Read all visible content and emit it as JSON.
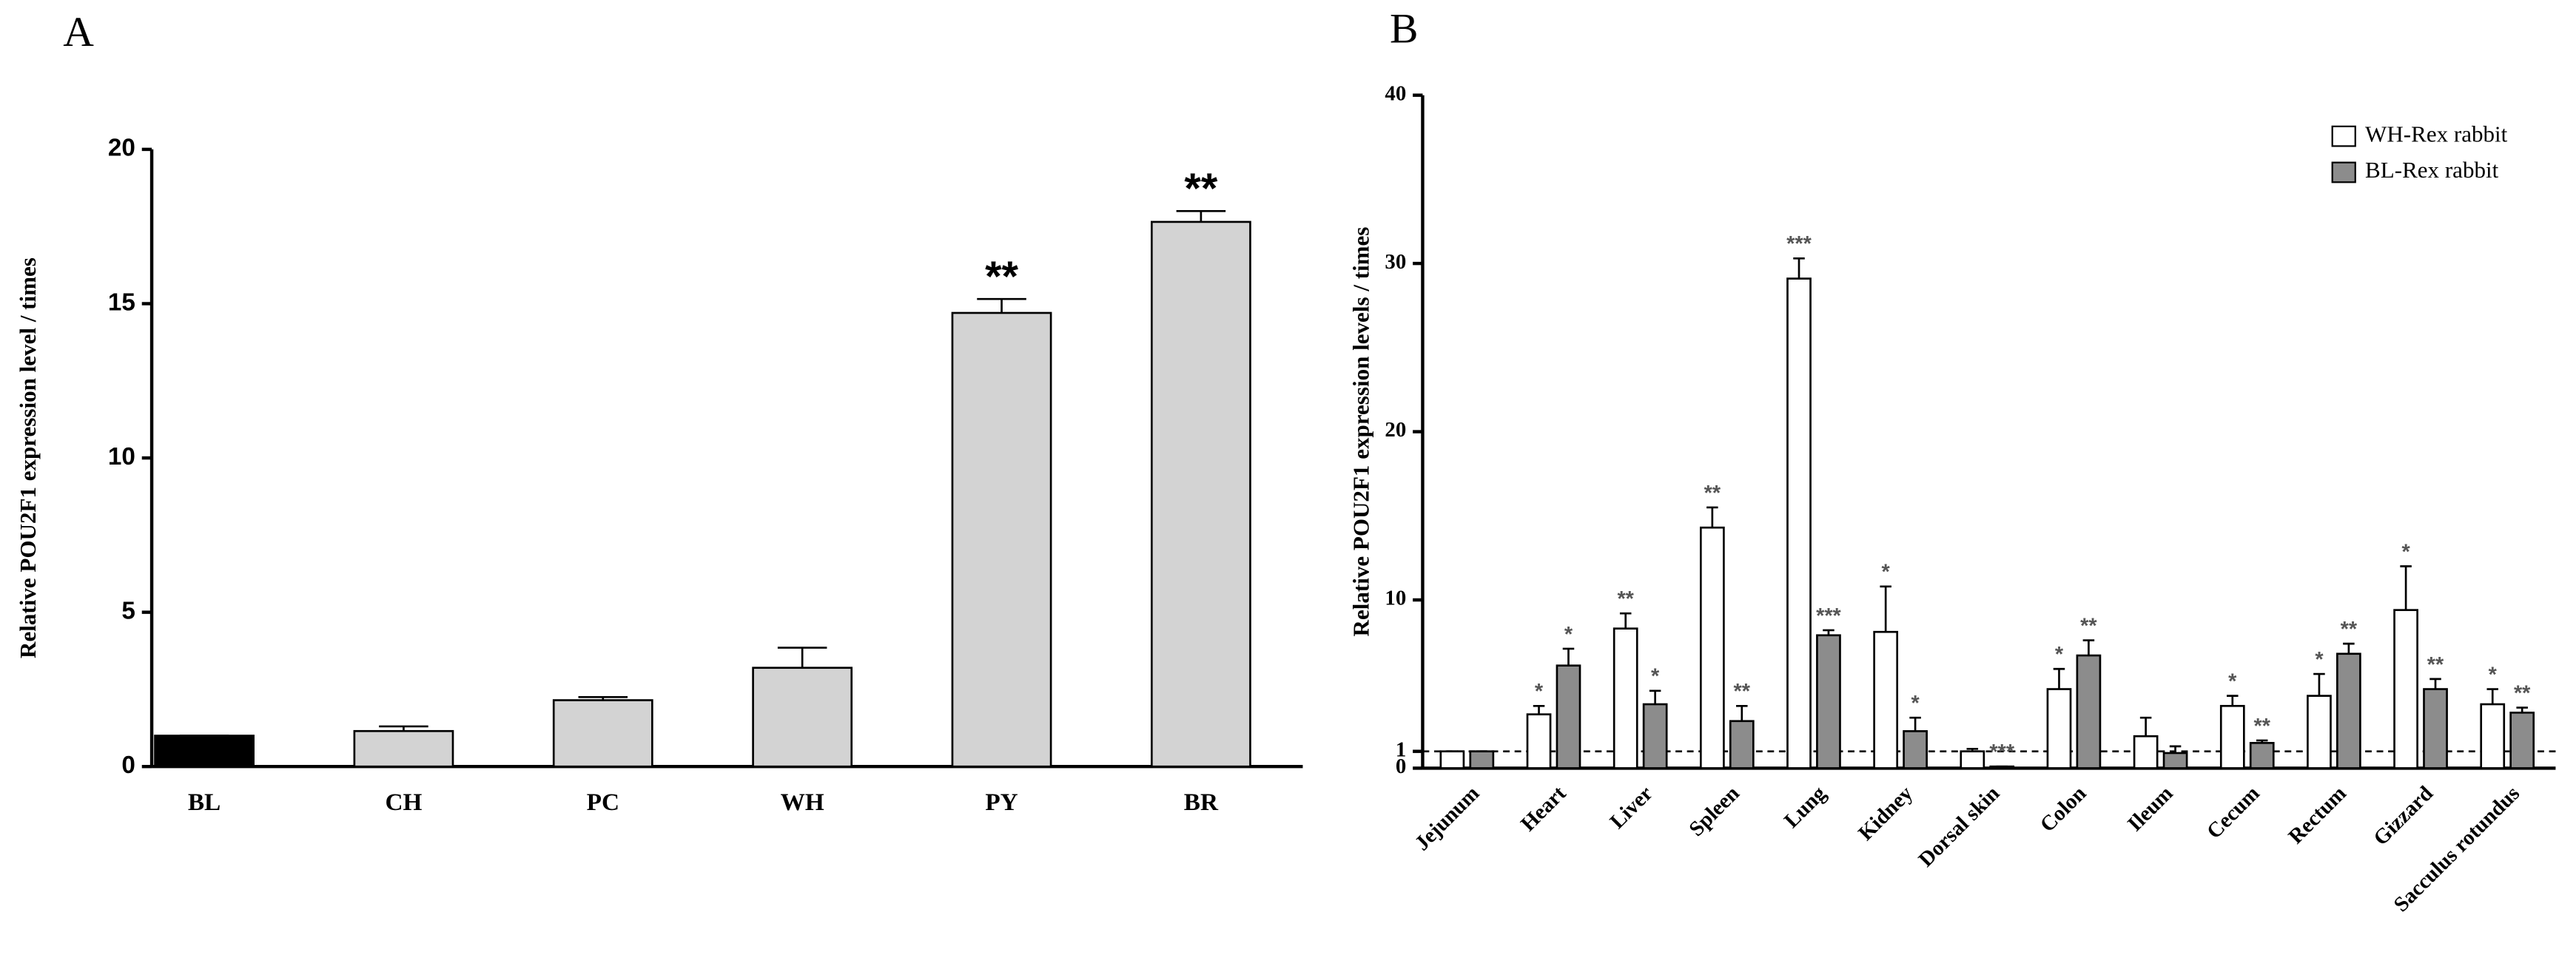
{
  "chart_data": [
    {
      "type": "bar",
      "panel": "A",
      "y_label": "Relative POU2F1 expression level / times",
      "categories": [
        "BL",
        "CH",
        "PC",
        "WH",
        "PY",
        "BR"
      ],
      "series": [
        {
          "values": [
            1,
            1.15,
            2.15,
            3.2,
            14.7,
            17.65
          ],
          "errors": [
            0,
            0.15,
            0.1,
            0.65,
            0.45,
            0.35
          ],
          "significance": [
            null,
            null,
            null,
            null,
            "**",
            "**"
          ],
          "colors": [
            "#000000",
            "#d3d3d3",
            "#d3d3d3",
            "#d3d3d3",
            "#d3d3d3",
            "#d3d3d3"
          ]
        }
      ],
      "ylim": [
        0,
        20
      ],
      "yticks": [
        0,
        5,
        10,
        15,
        20
      ]
    },
    {
      "type": "bar",
      "panel": "B",
      "y_label": "Relative POU2F1 expression levels / times",
      "categories": [
        "Jejunum",
        "Heart",
        "Liver",
        "Spleen",
        "Lung",
        "Kidney",
        "Dorsal skin",
        "Colon",
        "Ileum",
        "Cecum",
        "Rectum",
        "Gizzard",
        "Sacculus rotundus"
      ],
      "series": [
        {
          "name": "WH-Rex rabbit",
          "color": "#ffffff",
          "values": [
            1,
            3.2,
            8.3,
            14.3,
            29.1,
            8.1,
            1.0,
            4.7,
            1.9,
            3.7,
            4.3,
            9.4,
            3.8
          ],
          "errors": [
            0,
            0.5,
            0.9,
            1.2,
            1.2,
            2.7,
            0.15,
            1.2,
            1.1,
            0.6,
            1.3,
            2.6,
            0.9
          ],
          "significance": [
            null,
            "*",
            "**",
            "**",
            "***",
            "*",
            null,
            "*",
            null,
            "*",
            "*",
            "*",
            "*"
          ]
        },
        {
          "name": "BL-Rex rabbit",
          "color": "#8c8c8c",
          "values": [
            1,
            6.1,
            3.8,
            2.8,
            7.9,
            2.2,
            0.1,
            6.7,
            0.9,
            1.5,
            6.8,
            4.7,
            3.3
          ],
          "errors": [
            0,
            1.0,
            0.8,
            0.9,
            0.3,
            0.8,
            0,
            0.9,
            0.4,
            0.15,
            0.6,
            0.6,
            0.3
          ],
          "significance": [
            null,
            "*",
            "*",
            "**",
            "***",
            "*",
            "***",
            "**",
            null,
            "**",
            "**",
            "**",
            "**"
          ]
        }
      ],
      "ylim": [
        0,
        40
      ],
      "yticks": [
        0,
        1,
        10,
        20,
        30,
        40
      ],
      "hline": 1,
      "legend": "top-right"
    }
  ]
}
